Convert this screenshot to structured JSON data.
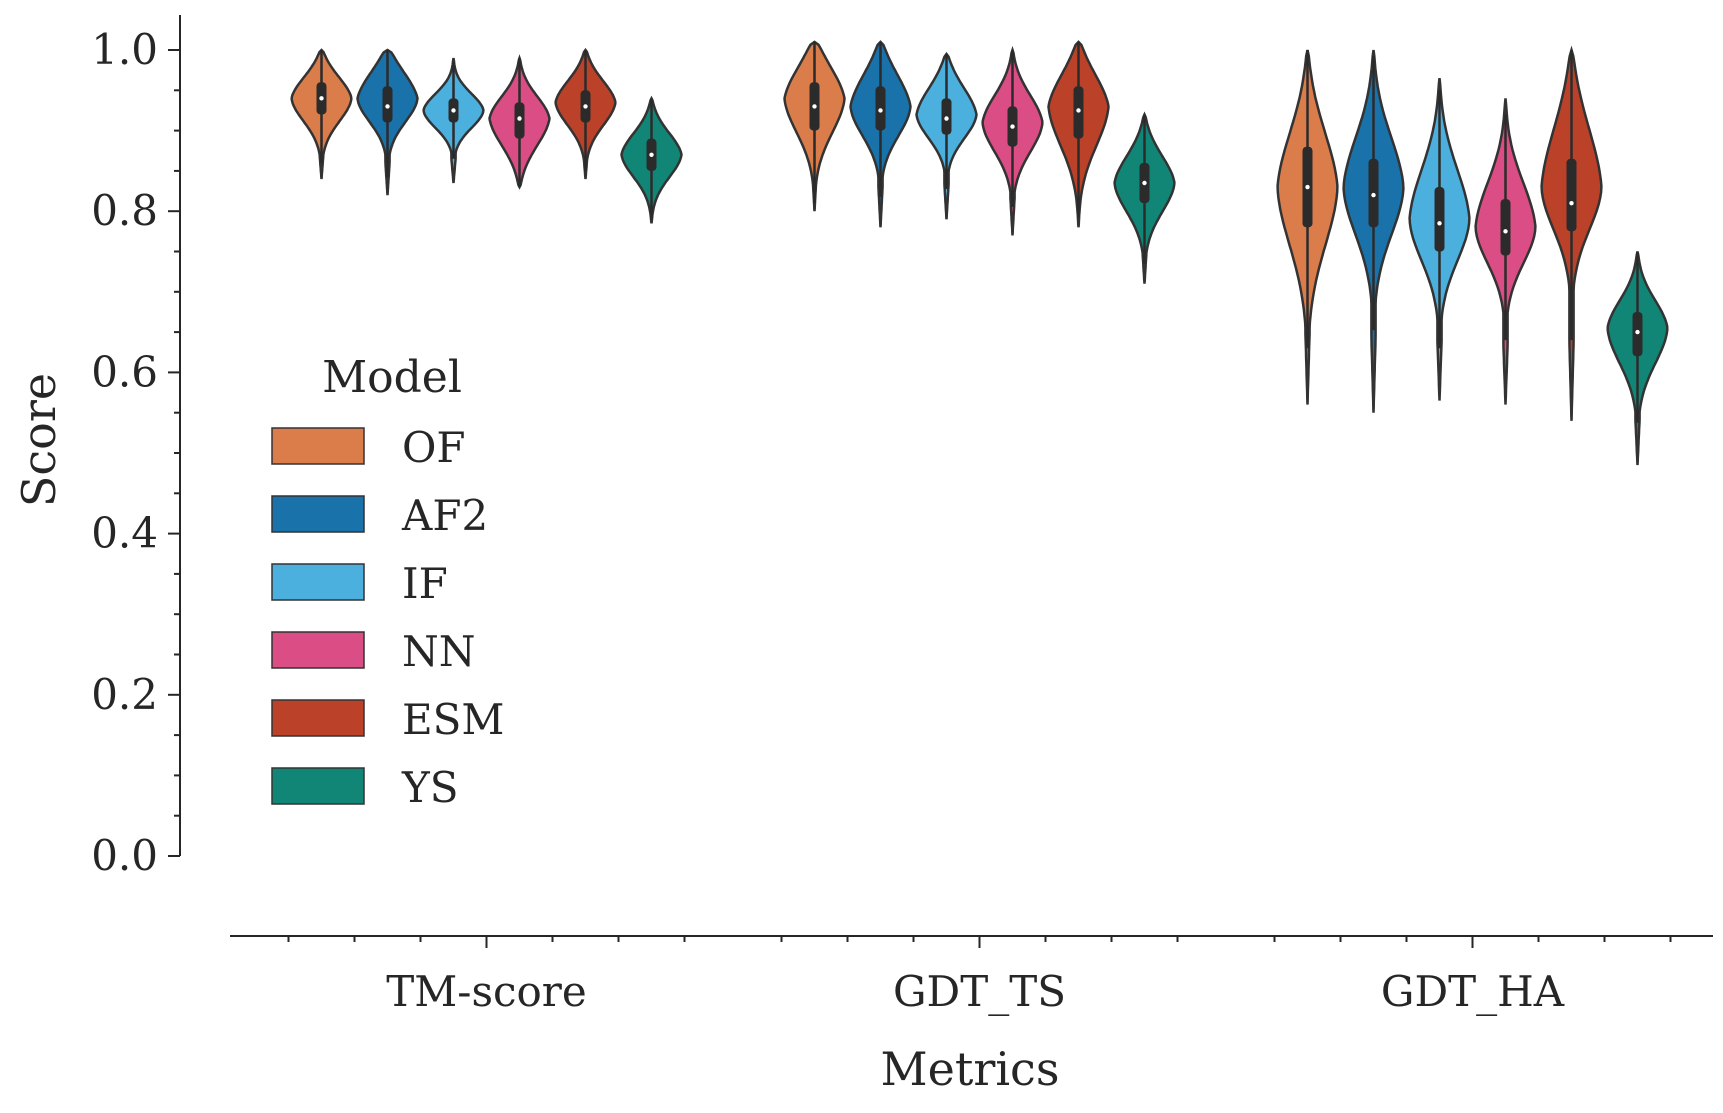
{
  "chart_data": {
    "type": "violin",
    "xlabel": "Metrics",
    "ylabel": "Score",
    "ylim": [
      0.0,
      1.0
    ],
    "yticks": [
      "0.0",
      "0.2",
      "0.4",
      "0.6",
      "0.8",
      "1.0"
    ],
    "categories": [
      "TM-score",
      "GDT_TS",
      "GDT_HA"
    ],
    "legend": {
      "title": "Model",
      "placement": "center-left"
    },
    "grid": false,
    "series": [
      {
        "name": "OF",
        "color": "#DB7C4B",
        "stats": [
          {
            "min": 0.84,
            "q1": 0.92,
            "median": 0.94,
            "q3": 0.96,
            "max": 1.0,
            "mode": 0.94
          },
          {
            "min": 0.8,
            "q1": 0.9,
            "median": 0.93,
            "q3": 0.96,
            "max": 1.01,
            "mode": 0.94
          },
          {
            "min": 0.56,
            "q1": 0.78,
            "median": 0.83,
            "q3": 0.88,
            "max": 1.0,
            "mode": 0.83
          }
        ]
      },
      {
        "name": "AF2",
        "color": "#1A72AA",
        "stats": [
          {
            "min": 0.82,
            "q1": 0.91,
            "median": 0.93,
            "q3": 0.955,
            "max": 1.0,
            "mode": 0.94
          },
          {
            "min": 0.78,
            "q1": 0.9,
            "median": 0.925,
            "q3": 0.955,
            "max": 1.01,
            "mode": 0.93
          },
          {
            "min": 0.55,
            "q1": 0.78,
            "median": 0.82,
            "q3": 0.865,
            "max": 1.0,
            "mode": 0.83
          }
        ]
      },
      {
        "name": "IF",
        "color": "#4CB0DF",
        "stats": [
          {
            "min": 0.835,
            "q1": 0.91,
            "median": 0.925,
            "q3": 0.94,
            "max": 0.99,
            "mode": 0.925
          },
          {
            "min": 0.79,
            "q1": 0.895,
            "median": 0.915,
            "q3": 0.94,
            "max": 0.995,
            "mode": 0.92
          },
          {
            "min": 0.565,
            "q1": 0.75,
            "median": 0.785,
            "q3": 0.83,
            "max": 0.965,
            "mode": 0.79
          }
        ]
      },
      {
        "name": "NN",
        "color": "#DB4D85",
        "stats": [
          {
            "min": 0.83,
            "q1": 0.89,
            "median": 0.915,
            "q3": 0.935,
            "max": 0.99,
            "mode": 0.915
          },
          {
            "min": 0.77,
            "q1": 0.88,
            "median": 0.905,
            "q3": 0.93,
            "max": 1.0,
            "mode": 0.91
          },
          {
            "min": 0.56,
            "q1": 0.745,
            "median": 0.775,
            "q3": 0.815,
            "max": 0.94,
            "mode": 0.78
          }
        ]
      },
      {
        "name": "ESM",
        "color": "#BC4129",
        "stats": [
          {
            "min": 0.84,
            "q1": 0.91,
            "median": 0.93,
            "q3": 0.95,
            "max": 1.0,
            "mode": 0.935
          },
          {
            "min": 0.78,
            "q1": 0.89,
            "median": 0.925,
            "q3": 0.955,
            "max": 1.01,
            "mode": 0.93
          },
          {
            "min": 0.54,
            "q1": 0.775,
            "median": 0.81,
            "q3": 0.865,
            "max": 1.0,
            "mode": 0.83
          }
        ]
      },
      {
        "name": "YS",
        "color": "#118676",
        "stats": [
          {
            "min": 0.785,
            "q1": 0.85,
            "median": 0.87,
            "q3": 0.89,
            "max": 0.94,
            "mode": 0.87
          },
          {
            "min": 0.71,
            "q1": 0.81,
            "median": 0.835,
            "q3": 0.86,
            "max": 0.92,
            "mode": 0.835
          },
          {
            "min": 0.485,
            "q1": 0.62,
            "median": 0.65,
            "q3": 0.675,
            "max": 0.75,
            "mode": 0.655
          }
        ]
      }
    ]
  }
}
